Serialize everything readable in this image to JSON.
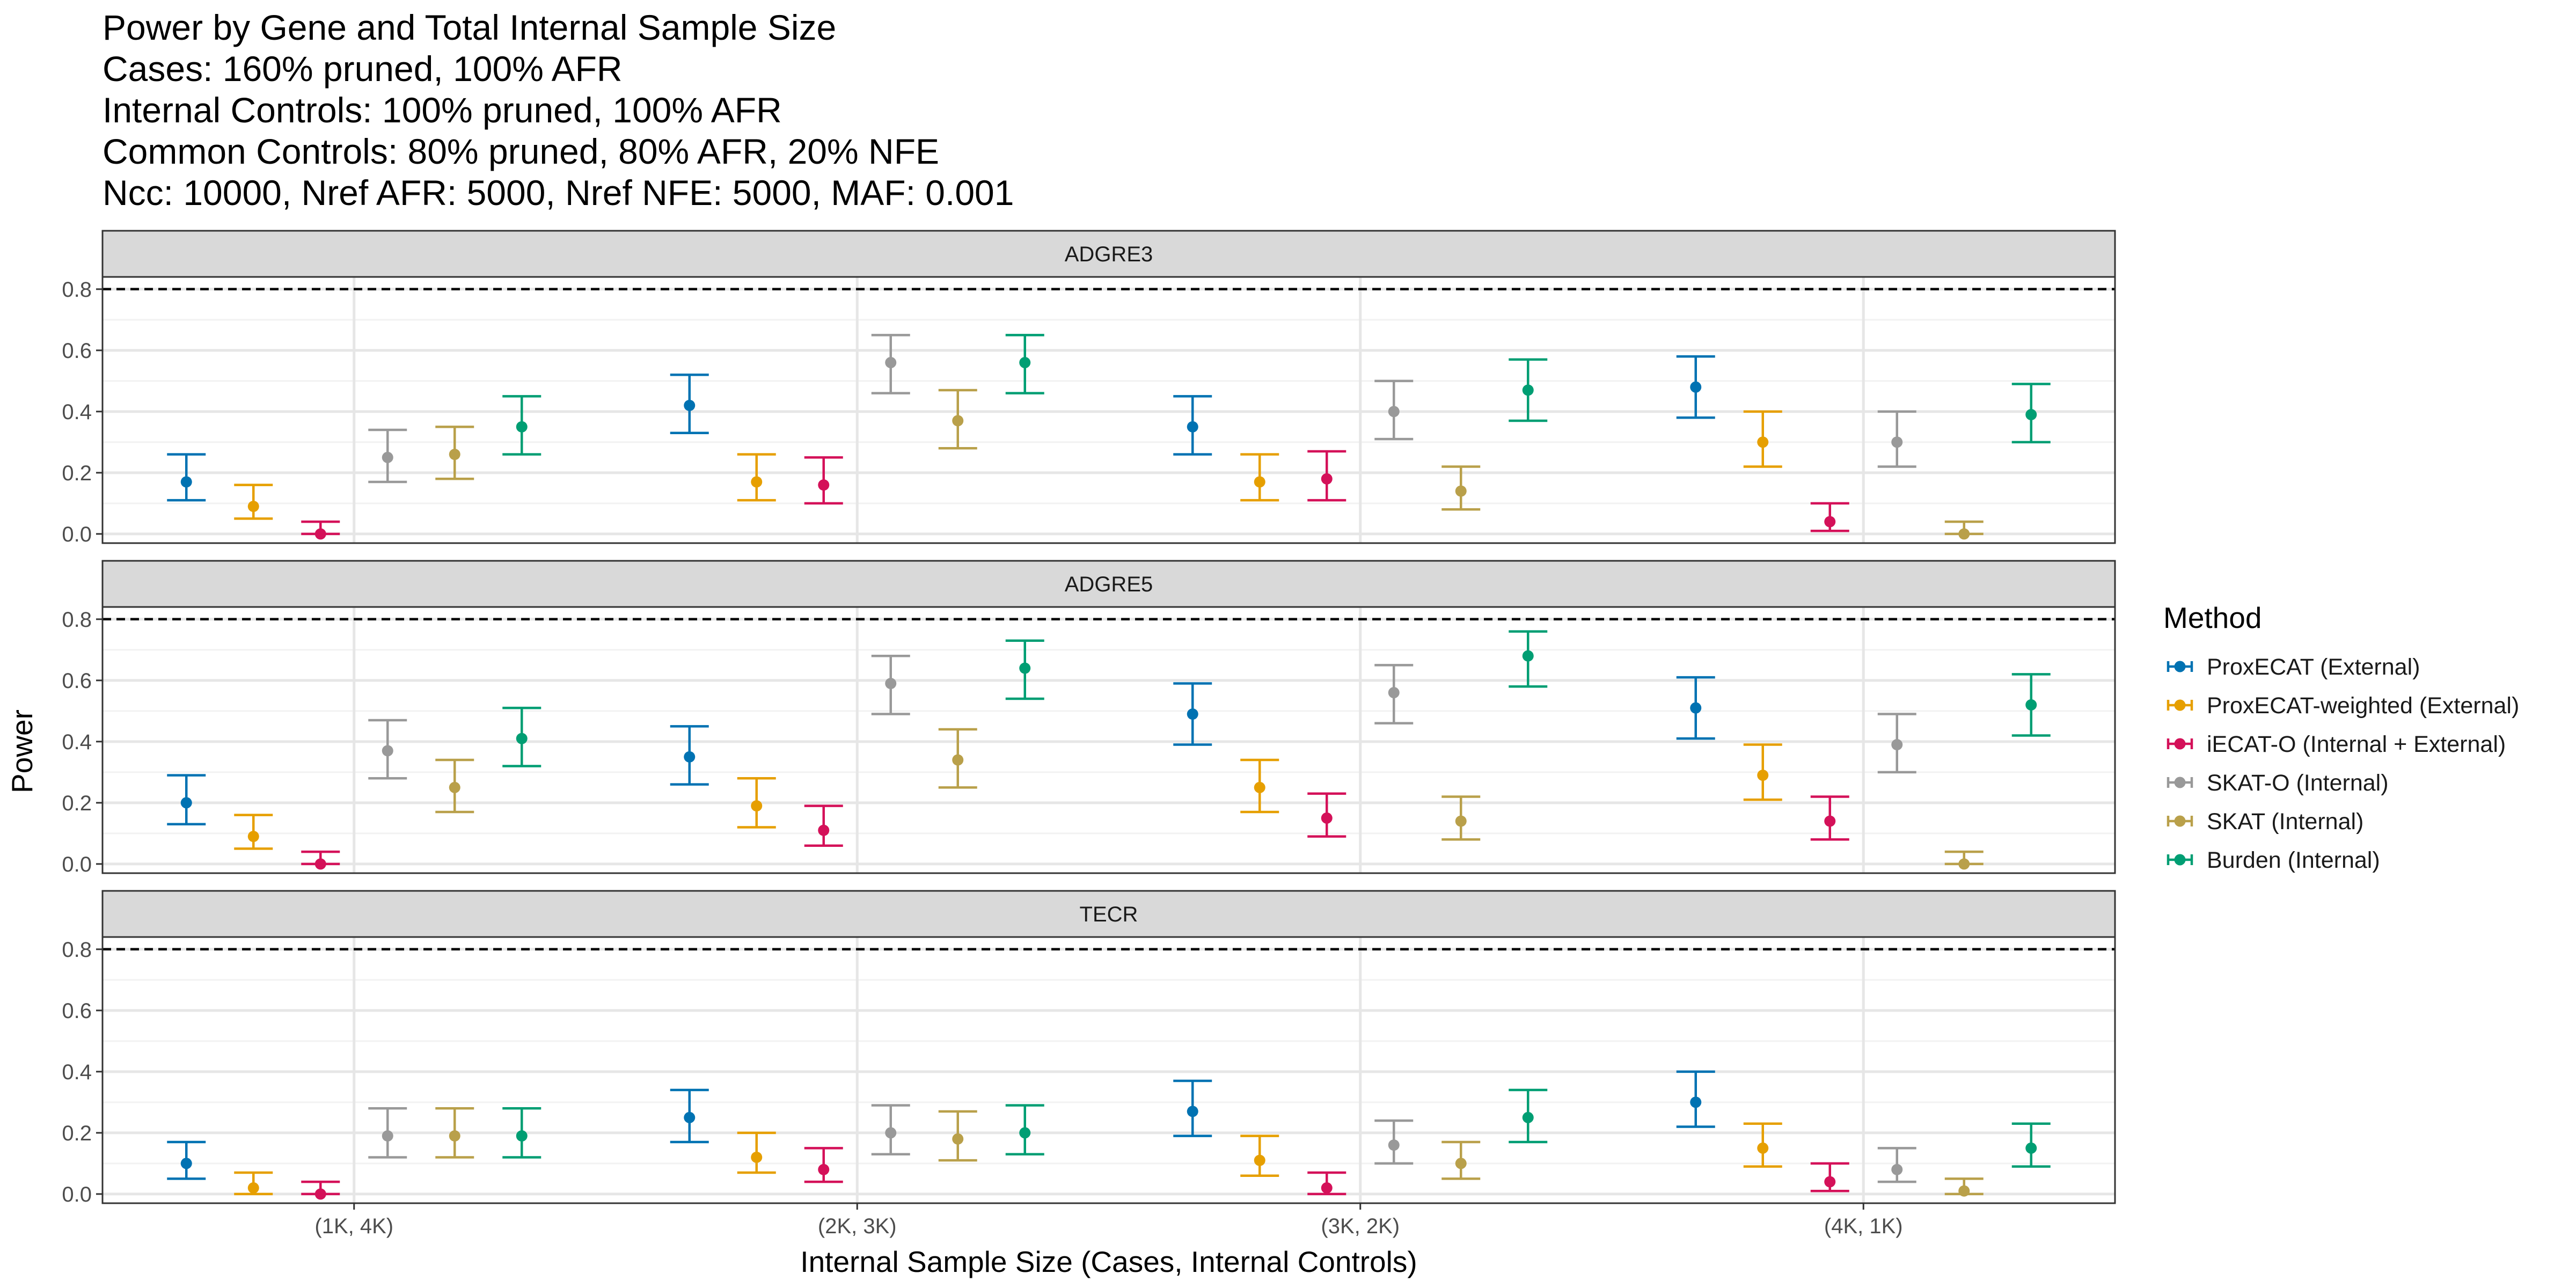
{
  "chart_data": {
    "type": "scatter",
    "title_lines": [
      "Power by Gene and Total Internal Sample Size",
      "Cases: 160% pruned, 100% AFR",
      "Internal Controls: 100% pruned, 100% AFR",
      "Common Controls: 80% pruned, 80% AFR, 20% NFE",
      "Ncc: 10000, Nref AFR: 5000, Nref NFE: 5000, MAF: 0.001"
    ],
    "xlabel": "Internal Sample Size (Cases, Internal Controls)",
    "ylabel": "Power",
    "categories": [
      "(1K, 4K)",
      "(2K, 3K)",
      "(3K, 2K)",
      "(4K, 1K)"
    ],
    "ylim": [
      -0.03,
      0.84
    ],
    "yticks": [
      0.0,
      0.2,
      0.4,
      0.6,
      0.8
    ],
    "ytick_labels": [
      "0.0",
      "0.2",
      "0.4",
      "0.6",
      "0.8"
    ],
    "reference_line": 0.8,
    "grid": true,
    "legend_position": "right",
    "legend_title": "Method",
    "series": [
      {
        "name": "ProxECAT (External)",
        "color": "#0072B2"
      },
      {
        "name": "ProxECAT-weighted (External)",
        "color": "#E69F00"
      },
      {
        "name": "iECAT-O (Internal + External)",
        "color": "#D41159"
      },
      {
        "name": "SKAT-O (Internal)",
        "color": "#999999"
      },
      {
        "name": "SKAT (Internal)",
        "color": "#B9A04A"
      },
      {
        "name": "Burden (Internal)",
        "color": "#009E73"
      }
    ],
    "panels": [
      {
        "label": "ADGRE3",
        "data": [
          [
            [
              0.17,
              0.11,
              0.26
            ],
            [
              0.09,
              0.05,
              0.16
            ],
            [
              0.0,
              0.0,
              0.04
            ],
            [
              0.25,
              0.17,
              0.34
            ],
            [
              0.26,
              0.18,
              0.35
            ],
            [
              0.35,
              0.26,
              0.45
            ]
          ],
          [
            [
              0.42,
              0.33,
              0.52
            ],
            [
              0.17,
              0.11,
              0.26
            ],
            [
              0.16,
              0.1,
              0.25
            ],
            [
              0.56,
              0.46,
              0.65
            ],
            [
              0.37,
              0.28,
              0.47
            ],
            [
              0.56,
              0.46,
              0.65
            ]
          ],
          [
            [
              0.35,
              0.26,
              0.45
            ],
            [
              0.17,
              0.11,
              0.26
            ],
            [
              0.18,
              0.11,
              0.27
            ],
            [
              0.4,
              0.31,
              0.5
            ],
            [
              0.14,
              0.08,
              0.22
            ],
            [
              0.47,
              0.37,
              0.57
            ]
          ],
          [
            [
              0.48,
              0.38,
              0.58
            ],
            [
              0.3,
              0.22,
              0.4
            ],
            [
              0.04,
              0.01,
              0.1
            ],
            [
              0.3,
              0.22,
              0.4
            ],
            [
              0.0,
              0.0,
              0.04
            ],
            [
              0.39,
              0.3,
              0.49
            ]
          ]
        ]
      },
      {
        "label": "ADGRE5",
        "data": [
          [
            [
              0.2,
              0.13,
              0.29
            ],
            [
              0.09,
              0.05,
              0.16
            ],
            [
              0.0,
              0.0,
              0.04
            ],
            [
              0.37,
              0.28,
              0.47
            ],
            [
              0.25,
              0.17,
              0.34
            ],
            [
              0.41,
              0.32,
              0.51
            ]
          ],
          [
            [
              0.35,
              0.26,
              0.45
            ],
            [
              0.19,
              0.12,
              0.28
            ],
            [
              0.11,
              0.06,
              0.19
            ],
            [
              0.59,
              0.49,
              0.68
            ],
            [
              0.34,
              0.25,
              0.44
            ],
            [
              0.64,
              0.54,
              0.73
            ]
          ],
          [
            [
              0.49,
              0.39,
              0.59
            ],
            [
              0.25,
              0.17,
              0.34
            ],
            [
              0.15,
              0.09,
              0.23
            ],
            [
              0.56,
              0.46,
              0.65
            ],
            [
              0.14,
              0.08,
              0.22
            ],
            [
              0.68,
              0.58,
              0.76
            ]
          ],
          [
            [
              0.51,
              0.41,
              0.61
            ],
            [
              0.29,
              0.21,
              0.39
            ],
            [
              0.14,
              0.08,
              0.22
            ],
            [
              0.39,
              0.3,
              0.49
            ],
            [
              0.0,
              0.0,
              0.04
            ],
            [
              0.52,
              0.42,
              0.62
            ]
          ]
        ]
      },
      {
        "label": "TECR",
        "data": [
          [
            [
              0.1,
              0.05,
              0.17
            ],
            [
              0.02,
              0.0,
              0.07
            ],
            [
              0.0,
              0.0,
              0.04
            ],
            [
              0.19,
              0.12,
              0.28
            ],
            [
              0.19,
              0.12,
              0.28
            ],
            [
              0.19,
              0.12,
              0.28
            ]
          ],
          [
            [
              0.25,
              0.17,
              0.34
            ],
            [
              0.12,
              0.07,
              0.2
            ],
            [
              0.08,
              0.04,
              0.15
            ],
            [
              0.2,
              0.13,
              0.29
            ],
            [
              0.18,
              0.11,
              0.27
            ],
            [
              0.2,
              0.13,
              0.29
            ]
          ],
          [
            [
              0.27,
              0.19,
              0.37
            ],
            [
              0.11,
              0.06,
              0.19
            ],
            [
              0.02,
              0.0,
              0.07
            ],
            [
              0.16,
              0.1,
              0.24
            ],
            [
              0.1,
              0.05,
              0.17
            ],
            [
              0.25,
              0.17,
              0.34
            ]
          ],
          [
            [
              0.3,
              0.22,
              0.4
            ],
            [
              0.15,
              0.09,
              0.23
            ],
            [
              0.04,
              0.01,
              0.1
            ],
            [
              0.08,
              0.04,
              0.15
            ],
            [
              0.01,
              0.0,
              0.05
            ],
            [
              0.15,
              0.09,
              0.23
            ]
          ]
        ]
      }
    ]
  }
}
